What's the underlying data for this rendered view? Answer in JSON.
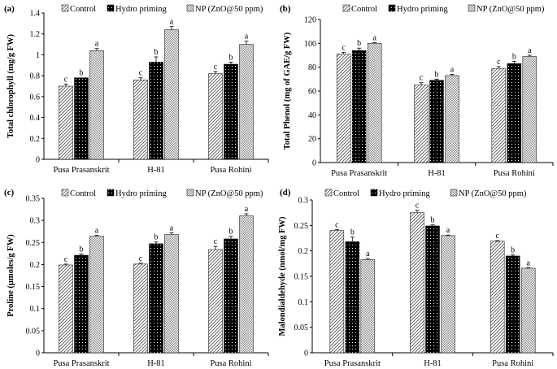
{
  "legend": [
    "Control",
    "Hydro priming",
    "NP (ZnO@50 ppm)"
  ],
  "chart_data": [
    {
      "type": "bar",
      "panel": "(a)",
      "ylabel": "Total chlorophyll (mg/g FW)",
      "categories": [
        "Pusa Prasanskrit",
        "H-81",
        "Pusa Rohini"
      ],
      "ylim": [
        0,
        1.4
      ],
      "yticks": [
        "0",
        "0.2",
        "0.4",
        "0.6",
        "0.8",
        "1",
        "1.2",
        "1.4"
      ],
      "series": [
        {
          "name": "Control",
          "values": [
            0.7,
            0.76,
            0.82
          ],
          "errors": [
            0.02,
            0.02,
            0.02
          ],
          "letters": [
            "c",
            "c",
            "c"
          ]
        },
        {
          "name": "Hydro priming",
          "values": [
            0.78,
            0.93,
            0.91
          ],
          "errors": [
            0.0,
            0.05,
            0.02
          ],
          "letters": [
            "b",
            "b",
            "b"
          ]
        },
        {
          "name": "NP (ZnO@50 ppm)",
          "values": [
            1.04,
            1.24,
            1.1
          ],
          "errors": [
            0.02,
            0.03,
            0.03
          ],
          "letters": [
            "a",
            "a",
            "a"
          ]
        }
      ]
    },
    {
      "type": "bar",
      "panel": "(b)",
      "ylabel": "Total Phenol (mg of GAE/g FW)",
      "categories": [
        "Pusa Prasanskrit",
        "H-81",
        "Pusa Rohini"
      ],
      "ylim": [
        0,
        120
      ],
      "yticks": [
        "0",
        "20",
        "40",
        "60",
        "80",
        "100",
        "120"
      ],
      "series": [
        {
          "name": "Control",
          "values": [
            91,
            65,
            79
          ],
          "errors": [
            1.5,
            2.0,
            1.5
          ],
          "letters": [
            "c",
            "c",
            "c"
          ]
        },
        {
          "name": "Hydro priming",
          "values": [
            94,
            69,
            83
          ],
          "errors": [
            2.0,
            1.0,
            2.0
          ],
          "letters": [
            "b",
            "b",
            "b"
          ]
        },
        {
          "name": "NP (ZnO@50 ppm)",
          "values": [
            100,
            73,
            89
          ],
          "errors": [
            0.5,
            1.0,
            1.0
          ],
          "letters": [
            "a",
            "a",
            "a"
          ]
        }
      ]
    },
    {
      "type": "bar",
      "panel": "(c)",
      "ylabel": "Proline (μmoles/g FW)",
      "categories": [
        "Pusa Prasanskrit",
        "H-81",
        "Pusa Rohini"
      ],
      "ylim": [
        0,
        0.35
      ],
      "yticks": [
        "0",
        "0.05",
        "0.1",
        "0.15",
        "0.2",
        "0.25",
        "0.3",
        "0.35"
      ],
      "series": [
        {
          "name": "Control",
          "values": [
            0.199,
            0.201,
            0.234
          ],
          "errors": [
            0.002,
            0.002,
            0.007
          ],
          "letters": [
            "c",
            "c",
            "c"
          ]
        },
        {
          "name": "Hydro priming",
          "values": [
            0.221,
            0.247,
            0.258
          ],
          "errors": [
            0.003,
            0.004,
            0.006
          ],
          "letters": [
            "b",
            "b",
            "b"
          ]
        },
        {
          "name": "NP (ZnO@50 ppm)",
          "values": [
            0.264,
            0.268,
            0.31
          ],
          "errors": [
            0.002,
            0.004,
            0.005
          ],
          "letters": [
            "a",
            "a",
            "a"
          ]
        }
      ]
    },
    {
      "type": "bar",
      "panel": "(d)",
      "ylabel": "Malondialdehyde (nmol/mg FW)",
      "categories": [
        "Pusa Prasanskrit",
        "H-81",
        "Pusa Rohini"
      ],
      "ylim": [
        0,
        0.3
      ],
      "yticks": [
        "0",
        "0.05",
        "0.1",
        "0.15",
        "0.2",
        "0.25",
        "0.3"
      ],
      "series": [
        {
          "name": "Control",
          "values": [
            0.24,
            0.275,
            0.219
          ],
          "errors": [
            0.002,
            0.005,
            0.001
          ],
          "letters": [
            "c",
            "c",
            "c"
          ]
        },
        {
          "name": "Hydro priming",
          "values": [
            0.218,
            0.249,
            0.19
          ],
          "errors": [
            0.009,
            0.002,
            0.002
          ],
          "letters": [
            "b",
            "b",
            "b"
          ]
        },
        {
          "name": "NP (ZnO@50 ppm)",
          "values": [
            0.183,
            0.23,
            0.166
          ],
          "errors": [
            0.002,
            0.001,
            0.001
          ],
          "letters": [
            "a",
            "a",
            "a"
          ]
        }
      ]
    }
  ]
}
